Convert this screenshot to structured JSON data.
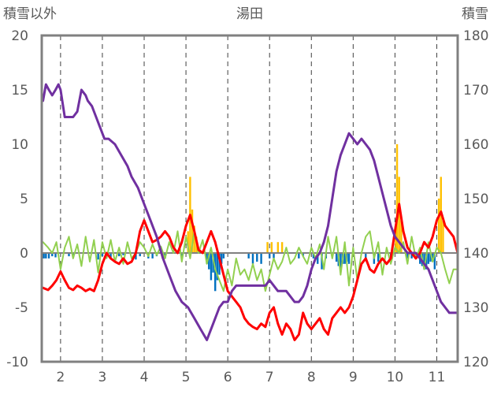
{
  "chart_data": {
    "type": "line",
    "title": "湯田",
    "ylabel_left": "積雪以外",
    "ylabel_right": "積雪",
    "ylim_left": [
      -10,
      20
    ],
    "ylim_right": [
      120,
      180
    ],
    "yticks_left": [
      20,
      15,
      10,
      5,
      0,
      -5,
      -10
    ],
    "yticks_left_labels": [
      "20",
      "15",
      "10",
      "5",
      "0",
      "-5",
      "-10"
    ],
    "yticks_right": [
      180,
      170,
      160,
      150,
      140,
      130,
      120
    ],
    "yticks_right_labels": [
      "180",
      "170",
      "160",
      "150",
      "140",
      "130",
      "120"
    ],
    "xlim": [
      1.55,
      11.5
    ],
    "xticks": [
      2,
      3,
      4,
      5,
      6,
      7,
      8,
      9,
      10,
      11
    ],
    "xtick_labels": [
      "2",
      "3",
      "4",
      "5",
      "6",
      "7",
      "8",
      "9",
      "10",
      "11"
    ],
    "grid": "vertical dashed lines at each date; horizontal solid line at 0",
    "colors": {
      "snow_depth": "#7030A0",
      "temperature": "#FF0000",
      "humidity": "#92D050",
      "precip_positive": "#FFC000",
      "precip_negative": "#0070C0",
      "frame": "#808080",
      "grid": "#404040"
    },
    "series": [
      {
        "key": "snow_depth",
        "axis": "right",
        "style": "line",
        "x": [
          1.58,
          1.65,
          1.72,
          1.8,
          1.88,
          1.95,
          2.0,
          2.1,
          2.2,
          2.3,
          2.4,
          2.5,
          2.6,
          2.65,
          2.75,
          2.85,
          2.95,
          3.05,
          3.15,
          3.3,
          3.45,
          3.6,
          3.7,
          3.85,
          4.0,
          4.15,
          4.3,
          4.45,
          4.6,
          4.75,
          4.9,
          5.05,
          5.2,
          5.35,
          5.5,
          5.65,
          5.8,
          5.9,
          6.0,
          6.1,
          6.2,
          6.35,
          6.5,
          6.6,
          6.7,
          6.8,
          6.9,
          7.0,
          7.1,
          7.2,
          7.3,
          7.4,
          7.5,
          7.6,
          7.7,
          7.8,
          7.9,
          8.0,
          8.1,
          8.2,
          8.3,
          8.4,
          8.5,
          8.6,
          8.7,
          8.8,
          8.9,
          9.0,
          9.1,
          9.2,
          9.3,
          9.4,
          9.5,
          9.6,
          9.7,
          9.8,
          9.9,
          10.0,
          10.1,
          10.2,
          10.3,
          10.4,
          10.5,
          10.6,
          10.7,
          10.8,
          10.9,
          11.0,
          11.1,
          11.2,
          11.3,
          11.4,
          11.5
        ],
        "values": [
          168,
          171,
          170,
          169,
          170,
          171,
          170,
          165,
          165,
          165,
          166,
          170,
          169,
          168,
          167,
          165,
          163,
          161,
          161,
          160,
          158,
          156,
          154,
          152,
          149,
          146,
          143,
          139,
          136,
          133,
          131,
          130,
          128,
          126,
          124,
          127,
          130,
          131,
          131,
          133,
          134,
          134,
          134,
          134,
          134,
          134,
          134,
          135,
          134,
          133,
          133,
          133,
          132,
          131,
          131,
          132,
          134,
          137,
          139,
          140,
          142,
          145,
          150,
          155,
          158,
          160,
          162,
          161,
          160,
          161,
          160,
          159,
          157,
          154,
          151,
          148,
          145,
          143,
          142,
          141,
          140,
          140,
          140,
          139,
          138,
          137,
          135,
          133,
          131,
          130,
          129,
          129,
          129
        ]
      },
      {
        "key": "temperature",
        "axis": "left",
        "style": "line",
        "x": [
          1.58,
          1.7,
          1.8,
          1.9,
          2.0,
          2.1,
          2.2,
          2.3,
          2.4,
          2.5,
          2.6,
          2.7,
          2.8,
          2.9,
          3.0,
          3.1,
          3.2,
          3.3,
          3.4,
          3.5,
          3.6,
          3.7,
          3.8,
          3.9,
          4.0,
          4.1,
          4.2,
          4.3,
          4.4,
          4.5,
          4.6,
          4.7,
          4.8,
          4.9,
          5.0,
          5.1,
          5.2,
          5.3,
          5.4,
          5.5,
          5.6,
          5.7,
          5.8,
          5.9,
          6.0,
          6.1,
          6.2,
          6.3,
          6.4,
          6.5,
          6.6,
          6.7,
          6.8,
          6.9,
          7.0,
          7.1,
          7.2,
          7.3,
          7.4,
          7.5,
          7.6,
          7.7,
          7.8,
          7.9,
          8.0,
          8.1,
          8.2,
          8.3,
          8.4,
          8.5,
          8.6,
          8.7,
          8.8,
          8.9,
          9.0,
          9.1,
          9.2,
          9.3,
          9.4,
          9.5,
          9.6,
          9.7,
          9.8,
          9.9,
          10.0,
          10.1,
          10.2,
          10.3,
          10.4,
          10.5,
          10.6,
          10.7,
          10.8,
          10.9,
          11.0,
          11.1,
          11.2,
          11.3,
          11.4,
          11.5
        ],
        "values": [
          -3.2,
          -3.4,
          -3.0,
          -2.5,
          -1.7,
          -2.5,
          -3.2,
          -3.4,
          -3.0,
          -3.2,
          -3.5,
          -3.3,
          -3.5,
          -2.5,
          -1.0,
          0.0,
          -0.5,
          -0.8,
          -1.0,
          -0.5,
          -1.0,
          -0.8,
          0.0,
          2.0,
          3.0,
          2.0,
          1.0,
          1.2,
          1.5,
          2.0,
          1.5,
          0.5,
          0.0,
          1.0,
          2.5,
          3.5,
          2.0,
          0.3,
          0.0,
          1.0,
          2.0,
          1.0,
          -0.5,
          -2.0,
          -3.5,
          -4.0,
          -4.5,
          -5.0,
          -6.0,
          -6.5,
          -6.8,
          -7.0,
          -6.5,
          -6.8,
          -5.5,
          -5.0,
          -6.5,
          -7.5,
          -6.5,
          -7.0,
          -8.0,
          -7.5,
          -5.5,
          -6.5,
          -7.0,
          -6.5,
          -6.0,
          -7.0,
          -7.5,
          -6.0,
          -5.5,
          -5.0,
          -5.5,
          -5.0,
          -4.0,
          -2.5,
          -1.0,
          -0.5,
          -1.5,
          -1.8,
          -1.0,
          -0.5,
          -1.0,
          -0.5,
          2.0,
          4.5,
          2.0,
          0.5,
          0.0,
          -0.5,
          0.0,
          1.0,
          0.5,
          1.5,
          3.0,
          3.8,
          2.5,
          2.0,
          1.5,
          0.0
        ]
      },
      {
        "key": "humidity",
        "axis": "left",
        "style": "line",
        "x": [
          1.58,
          1.7,
          1.8,
          1.9,
          2.0,
          2.1,
          2.2,
          2.3,
          2.4,
          2.5,
          2.6,
          2.7,
          2.8,
          2.9,
          3.0,
          3.1,
          3.2,
          3.3,
          3.4,
          3.5,
          3.6,
          3.7,
          3.8,
          3.9,
          4.0,
          4.1,
          4.2,
          4.3,
          4.4,
          4.5,
          4.6,
          4.7,
          4.8,
          4.9,
          5.0,
          5.1,
          5.2,
          5.3,
          5.4,
          5.5,
          5.6,
          5.7,
          5.8,
          5.9,
          6.0,
          6.1,
          6.2,
          6.3,
          6.4,
          6.5,
          6.6,
          6.7,
          6.8,
          6.9,
          7.0,
          7.1,
          7.2,
          7.3,
          7.4,
          7.5,
          7.6,
          7.7,
          7.8,
          7.9,
          8.0,
          8.1,
          8.2,
          8.3,
          8.4,
          8.5,
          8.6,
          8.7,
          8.8,
          8.9,
          9.0,
          9.1,
          9.2,
          9.3,
          9.4,
          9.5,
          9.6,
          9.7,
          9.8,
          9.9,
          10.0,
          10.1,
          10.2,
          10.3,
          10.4,
          10.5,
          10.6,
          10.7,
          10.8,
          10.9,
          11.0,
          11.1,
          11.2,
          11.3,
          11.4,
          11.5
        ],
        "values": [
          1.0,
          0.5,
          0.0,
          1.0,
          -1.5,
          0.5,
          1.5,
          -0.5,
          0.8,
          -1.2,
          1.5,
          -0.8,
          1.2,
          -1.8,
          1.0,
          -0.5,
          1.2,
          -0.8,
          0.5,
          -1.0,
          1.0,
          -0.5,
          0.0,
          1.0,
          0.5,
          -0.3,
          0.8,
          -0.2,
          0.6,
          -0.5,
          1.0,
          0.0,
          2.0,
          -0.8,
          1.5,
          -0.5,
          2.0,
          0.0,
          1.2,
          -1.0,
          0.5,
          -1.5,
          -2.5,
          -3.5,
          -1.5,
          -3.0,
          -0.5,
          -2.0,
          -1.5,
          -2.5,
          -1.0,
          -2.5,
          -1.5,
          -3.5,
          -2.0,
          -0.5,
          -1.5,
          -0.8,
          0.5,
          -1.0,
          -0.5,
          0.5,
          -0.3,
          -1.0,
          0.5,
          -0.5,
          0.8,
          -1.5,
          1.5,
          -0.5,
          1.5,
          -2.0,
          1.0,
          -3.0,
          0.5,
          -2.5,
          0.0,
          1.5,
          2.0,
          -0.5,
          1.0,
          -2.0,
          0.5,
          -1.0,
          0.5,
          0.0,
          1.0,
          -1.0,
          1.5,
          -0.5,
          0.5,
          -1.5,
          1.0,
          -0.8,
          0.5,
          0.0,
          -1.5,
          -2.8,
          -1.5,
          -1.5
        ]
      }
    ],
    "precipitation_bars": {
      "axis": "left",
      "x": [
        1.6,
        1.65,
        1.72,
        1.8,
        1.88,
        2.2,
        2.3,
        2.9,
        3.0,
        3.1,
        3.2,
        3.4,
        3.5,
        3.8,
        3.9,
        4.1,
        4.2,
        4.3,
        4.5,
        4.9,
        5.05,
        5.1,
        5.15,
        5.2,
        5.25,
        5.5,
        5.55,
        5.6,
        5.65,
        5.7,
        5.75,
        5.8,
        5.85,
        5.9,
        6.5,
        6.6,
        6.7,
        6.8,
        6.95,
        7.0,
        7.05,
        7.1,
        7.2,
        7.3,
        7.7,
        7.8,
        8.05,
        8.15,
        8.25,
        8.35,
        8.6,
        8.65,
        8.7,
        8.75,
        8.8,
        8.85,
        8.9,
        9.3,
        9.5,
        9.6,
        9.9,
        10.02,
        10.05,
        10.1,
        10.15,
        10.3,
        10.4,
        10.6,
        10.65,
        10.7,
        10.75,
        10.8,
        10.85,
        10.9,
        10.95,
        11.05,
        11.1,
        11.15
      ],
      "values": [
        -0.5,
        -0.5,
        -0.5,
        -0.3,
        -0.4,
        -0.3,
        -0.2,
        -0.6,
        -0.3,
        -0.3,
        -0.5,
        -0.3,
        -0.2,
        -0.6,
        -0.3,
        -0.5,
        -0.5,
        -0.3,
        -0.5,
        -0.5,
        2.0,
        7.0,
        4.0,
        2.5,
        1.5,
        -1.0,
        -1.5,
        -2.5,
        -1.8,
        -3.5,
        -2.5,
        -2.0,
        -1.0,
        -0.5,
        -0.5,
        -1.0,
        -0.8,
        -1.0,
        1.0,
        -0.5,
        1.0,
        -0.5,
        1.0,
        1.0,
        -0.5,
        -0.3,
        -0.5,
        -1.0,
        -1.5,
        -0.5,
        -0.8,
        -1.2,
        -1.5,
        -1.0,
        -1.0,
        -0.8,
        -1.0,
        -0.5,
        -1.0,
        -0.8,
        -0.5,
        2.0,
        10.0,
        7.0,
        3.0,
        -0.5,
        -0.5,
        -1.0,
        -1.2,
        -1.5,
        -1.5,
        -1.0,
        -0.8,
        -0.5,
        -1.5,
        5.0,
        7.0,
        3.0
      ]
    }
  }
}
